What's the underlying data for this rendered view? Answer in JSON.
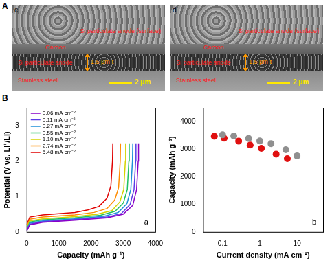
{
  "panel_labels": [
    "A",
    "B"
  ],
  "sem_images": [
    {
      "label": "c",
      "texts": {
        "surface": "Si particulate anode (surface)",
        "carbon": "Carbon",
        "anode": "Si particulate anode",
        "thickness": "1.5 μm-t",
        "substrate": "Stainless steel",
        "scale": "2 μm"
      }
    },
    {
      "label": "d",
      "texts": {
        "surface": "Si particulate anode (surface)",
        "carbon": "Carbon",
        "anode": "Si particulate anode",
        "thickness": "1.5 μm-t",
        "substrate": "Stainless steel",
        "scale": "2 μm"
      }
    }
  ],
  "chart_data": [
    {
      "type": "line",
      "annotations": [
        "a"
      ],
      "x_label": "Capacity (mAh g⁻¹)",
      "y_label": "Potential (V vs. Li⁺/Li)",
      "xlim": [
        0,
        4000
      ],
      "xticks": [
        0,
        1000,
        2000,
        3000,
        4000
      ],
      "ylim": [
        0,
        3.5
      ],
      "yticks": [
        0,
        1,
        2,
        3
      ],
      "grid": false,
      "legend": "upper left",
      "series": [
        {
          "name": "0.06 mA cm⁻²",
          "color": "#8a00c8",
          "x": [
            0,
            100,
            500,
            1500,
            2500,
            3000,
            3300,
            3420,
            3470,
            3480
          ],
          "values": [
            0.02,
            0.2,
            0.27,
            0.33,
            0.4,
            0.5,
            0.75,
            1.2,
            2.0,
            2.5
          ]
        },
        {
          "name": "0.11 mA cm⁻²",
          "color": "#5a3ee6",
          "x": [
            0,
            100,
            500,
            1500,
            2500,
            2950,
            3220,
            3340,
            3390,
            3400
          ],
          "values": [
            0.03,
            0.22,
            0.29,
            0.35,
            0.42,
            0.52,
            0.78,
            1.2,
            2.0,
            2.5
          ]
        },
        {
          "name": "0.27 mA cm⁻²",
          "color": "#1e90d8",
          "x": [
            0,
            100,
            500,
            1500,
            2400,
            2850,
            3120,
            3240,
            3290,
            3300
          ],
          "values": [
            0.05,
            0.25,
            0.31,
            0.37,
            0.44,
            0.55,
            0.8,
            1.2,
            2.0,
            2.5
          ]
        },
        {
          "name": "0.55 mA cm⁻²",
          "color": "#20c060",
          "x": [
            0,
            100,
            500,
            1500,
            2300,
            2750,
            3010,
            3130,
            3180,
            3190
          ],
          "values": [
            0.07,
            0.28,
            0.34,
            0.4,
            0.47,
            0.58,
            0.82,
            1.2,
            2.0,
            2.5
          ]
        },
        {
          "name": "1.10 mA cm⁻²",
          "color": "#d4d400",
          "x": [
            0,
            100,
            500,
            1500,
            2200,
            2650,
            2900,
            3020,
            3070,
            3080
          ],
          "values": [
            0.1,
            0.31,
            0.37,
            0.43,
            0.5,
            0.6,
            0.85,
            1.2,
            2.0,
            2.5
          ]
        },
        {
          "name": "2.74 mA cm⁻²",
          "color": "#ff8c00",
          "x": [
            0,
            100,
            500,
            1500,
            2100,
            2500,
            2740,
            2860,
            2910,
            2920
          ],
          "values": [
            0.14,
            0.36,
            0.42,
            0.48,
            0.55,
            0.66,
            0.9,
            1.25,
            2.0,
            2.5
          ]
        },
        {
          "name": "5.48 mA cm⁻²",
          "color": "#e00000",
          "x": [
            0,
            100,
            500,
            1500,
            1900,
            2250,
            2500,
            2620,
            2670,
            2680
          ],
          "values": [
            0.2,
            0.42,
            0.48,
            0.55,
            0.62,
            0.72,
            0.95,
            1.3,
            2.0,
            2.5
          ]
        }
      ]
    },
    {
      "type": "scatter",
      "annotations": [
        "b"
      ],
      "x_label": "Current density (mA cm⁻²)",
      "y_label": "Capacity (mAh g⁻¹)",
      "log": "x",
      "xlim": [
        0.03,
        50
      ],
      "xticks": [
        0.1,
        1,
        10
      ],
      "ylim": [
        0,
        4500
      ],
      "yticks": [
        0,
        1000,
        2000,
        3000,
        4000
      ],
      "grid": false,
      "marker": "circle",
      "series": [
        {
          "color": "#909090",
          "x": [
            0.1,
            0.2,
            0.5,
            1,
            2,
            5,
            10
          ],
          "values": [
            3520,
            3480,
            3390,
            3300,
            3200,
            2980,
            2760
          ]
        },
        {
          "color": "#e01010",
          "x": [
            0.06,
            0.11,
            0.27,
            0.55,
            1.1,
            2.74,
            5.48
          ],
          "values": [
            3470,
            3400,
            3290,
            3150,
            3030,
            2820,
            2660
          ]
        }
      ]
    }
  ]
}
